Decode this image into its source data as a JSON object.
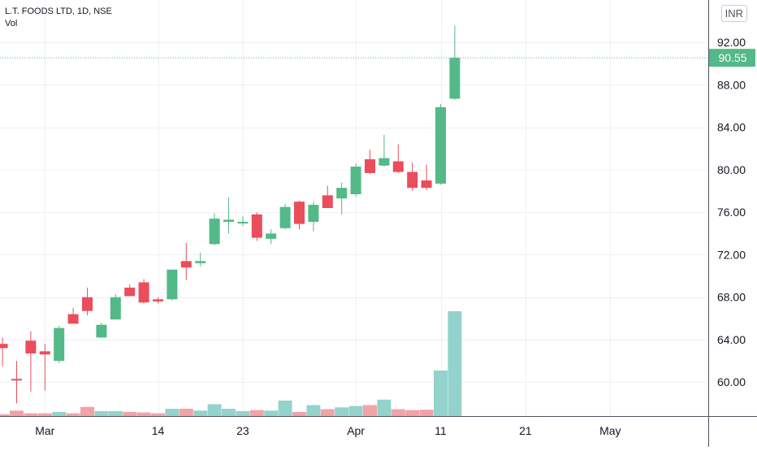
{
  "header": {
    "symbol_line": "L.T. FOODS LTD, 1D, NSE",
    "volume_label": "Vol",
    "currency": "INR"
  },
  "colors": {
    "up": "#53b987",
    "down": "#eb4d5c",
    "volume_up": "#94d3cc",
    "volume_down": "#f3a2a8",
    "last_price_bg": "#53b987",
    "grid": "#eef0f3"
  },
  "chart_data": {
    "type": "candlestick",
    "price_axis": {
      "min": 56.8,
      "max": 96.0,
      "ticks": [
        92,
        88,
        84,
        80,
        76,
        72,
        68,
        64,
        60
      ],
      "tick_labels": [
        "92.00",
        "88.00",
        "84.00",
        "80.00",
        "76.00",
        "72.00",
        "68.00",
        "64.00",
        "60.00"
      ]
    },
    "last_price": 90.55,
    "last_price_label": "90.55",
    "x_axis_labels": [
      {
        "label": "Mar",
        "day": 2
      },
      {
        "label": "14",
        "day": 10
      },
      {
        "label": "23",
        "day": 16
      },
      {
        "label": "Apr",
        "day": 24
      },
      {
        "label": "11",
        "day": 30
      },
      {
        "label": "21",
        "day": 36
      },
      {
        "label": "May",
        "day": 42
      }
    ],
    "candles": [
      {
        "day": -1,
        "o": 63.6,
        "h": 64.2,
        "l": 61.5,
        "c": 63.2
      },
      {
        "day": 0,
        "o": 60.3,
        "h": 62.0,
        "l": 58.0,
        "c": 60.2
      },
      {
        "day": 1,
        "o": 63.9,
        "h": 64.8,
        "l": 59.1,
        "c": 62.7
      },
      {
        "day": 2,
        "o": 62.9,
        "h": 63.6,
        "l": 59.2,
        "c": 62.6
      },
      {
        "day": 3,
        "o": 62.0,
        "h": 65.3,
        "l": 61.8,
        "c": 65.1
      },
      {
        "day": 4,
        "o": 66.4,
        "h": 67.0,
        "l": 65.6,
        "c": 65.5
      },
      {
        "day": 5,
        "o": 68.0,
        "h": 68.9,
        "l": 66.3,
        "c": 66.7
      },
      {
        "day": 6,
        "o": 64.2,
        "h": 65.6,
        "l": 64.2,
        "c": 65.4
      },
      {
        "day": 7,
        "o": 65.9,
        "h": 68.3,
        "l": 65.9,
        "c": 68.0
      },
      {
        "day": 8,
        "o": 68.9,
        "h": 69.2,
        "l": 68.1,
        "c": 68.1
      },
      {
        "day": 9,
        "o": 69.4,
        "h": 69.7,
        "l": 67.4,
        "c": 67.5
      },
      {
        "day": 10,
        "o": 67.8,
        "h": 68.0,
        "l": 67.4,
        "c": 67.6
      },
      {
        "day": 11,
        "o": 67.8,
        "h": 70.6,
        "l": 67.7,
        "c": 70.6
      },
      {
        "day": 12,
        "o": 71.4,
        "h": 73.1,
        "l": 69.6,
        "c": 70.8
      },
      {
        "day": 13,
        "o": 71.2,
        "h": 72.2,
        "l": 70.9,
        "c": 71.4
      },
      {
        "day": 14,
        "o": 73.0,
        "h": 75.9,
        "l": 72.9,
        "c": 75.4
      },
      {
        "day": 15,
        "o": 75.1,
        "h": 77.4,
        "l": 74.0,
        "c": 75.3
      },
      {
        "day": 16,
        "o": 75.1,
        "h": 75.6,
        "l": 74.7,
        "c": 75.1
      },
      {
        "day": 17,
        "o": 75.8,
        "h": 76.0,
        "l": 73.3,
        "c": 73.6
      },
      {
        "day": 18,
        "o": 73.5,
        "h": 74.4,
        "l": 73.0,
        "c": 74.0
      },
      {
        "day": 19,
        "o": 74.5,
        "h": 76.8,
        "l": 74.4,
        "c": 76.5
      },
      {
        "day": 20,
        "o": 77.0,
        "h": 77.1,
        "l": 74.4,
        "c": 74.9
      },
      {
        "day": 21,
        "o": 75.1,
        "h": 77.0,
        "l": 74.2,
        "c": 76.7
      },
      {
        "day": 22,
        "o": 77.6,
        "h": 78.5,
        "l": 76.4,
        "c": 76.4
      },
      {
        "day": 23,
        "o": 77.3,
        "h": 78.8,
        "l": 75.8,
        "c": 78.3
      },
      {
        "day": 24,
        "o": 77.7,
        "h": 80.6,
        "l": 77.5,
        "c": 80.3
      },
      {
        "day": 25,
        "o": 81.0,
        "h": 81.9,
        "l": 79.6,
        "c": 79.7
      },
      {
        "day": 26,
        "o": 80.4,
        "h": 83.3,
        "l": 80.3,
        "c": 81.1
      },
      {
        "day": 27,
        "o": 80.8,
        "h": 82.4,
        "l": 79.7,
        "c": 79.8
      },
      {
        "day": 28,
        "o": 79.8,
        "h": 80.7,
        "l": 78.0,
        "c": 78.3
      },
      {
        "day": 29,
        "o": 79.0,
        "h": 80.5,
        "l": 78.1,
        "c": 78.3
      },
      {
        "day": 30,
        "o": 78.7,
        "h": 86.2,
        "l": 78.6,
        "c": 85.9
      },
      {
        "day": 31,
        "o": 86.7,
        "h": 93.6,
        "l": 86.6,
        "c": 90.55
      }
    ],
    "volume": [
      {
        "day": -1,
        "v": 0.2,
        "dir": "down"
      },
      {
        "day": 0,
        "v": 0.6,
        "dir": "down"
      },
      {
        "day": 1,
        "v": 0.3,
        "dir": "down"
      },
      {
        "day": 2,
        "v": 0.3,
        "dir": "down"
      },
      {
        "day": 3,
        "v": 0.45,
        "dir": "up"
      },
      {
        "day": 4,
        "v": 0.3,
        "dir": "down"
      },
      {
        "day": 5,
        "v": 1.0,
        "dir": "down"
      },
      {
        "day": 6,
        "v": 0.55,
        "dir": "up"
      },
      {
        "day": 7,
        "v": 0.55,
        "dir": "up"
      },
      {
        "day": 8,
        "v": 0.45,
        "dir": "down"
      },
      {
        "day": 9,
        "v": 0.4,
        "dir": "down"
      },
      {
        "day": 10,
        "v": 0.3,
        "dir": "down"
      },
      {
        "day": 11,
        "v": 0.8,
        "dir": "up"
      },
      {
        "day": 12,
        "v": 0.8,
        "dir": "down"
      },
      {
        "day": 13,
        "v": 0.6,
        "dir": "up"
      },
      {
        "day": 14,
        "v": 1.3,
        "dir": "up"
      },
      {
        "day": 15,
        "v": 0.8,
        "dir": "up"
      },
      {
        "day": 16,
        "v": 0.55,
        "dir": "up"
      },
      {
        "day": 17,
        "v": 0.65,
        "dir": "down"
      },
      {
        "day": 18,
        "v": 0.6,
        "dir": "up"
      },
      {
        "day": 19,
        "v": 1.7,
        "dir": "up"
      },
      {
        "day": 20,
        "v": 0.45,
        "dir": "down"
      },
      {
        "day": 21,
        "v": 1.2,
        "dir": "up"
      },
      {
        "day": 22,
        "v": 0.75,
        "dir": "down"
      },
      {
        "day": 23,
        "v": 0.95,
        "dir": "up"
      },
      {
        "day": 24,
        "v": 1.1,
        "dir": "up"
      },
      {
        "day": 25,
        "v": 1.2,
        "dir": "down"
      },
      {
        "day": 26,
        "v": 1.8,
        "dir": "up"
      },
      {
        "day": 27,
        "v": 0.75,
        "dir": "down"
      },
      {
        "day": 28,
        "v": 0.65,
        "dir": "down"
      },
      {
        "day": 29,
        "v": 0.7,
        "dir": "down"
      },
      {
        "day": 30,
        "v": 5.0,
        "dir": "up"
      },
      {
        "day": 31,
        "v": 11.5,
        "dir": "up"
      }
    ],
    "volume_max": 11.5,
    "grid": true
  }
}
